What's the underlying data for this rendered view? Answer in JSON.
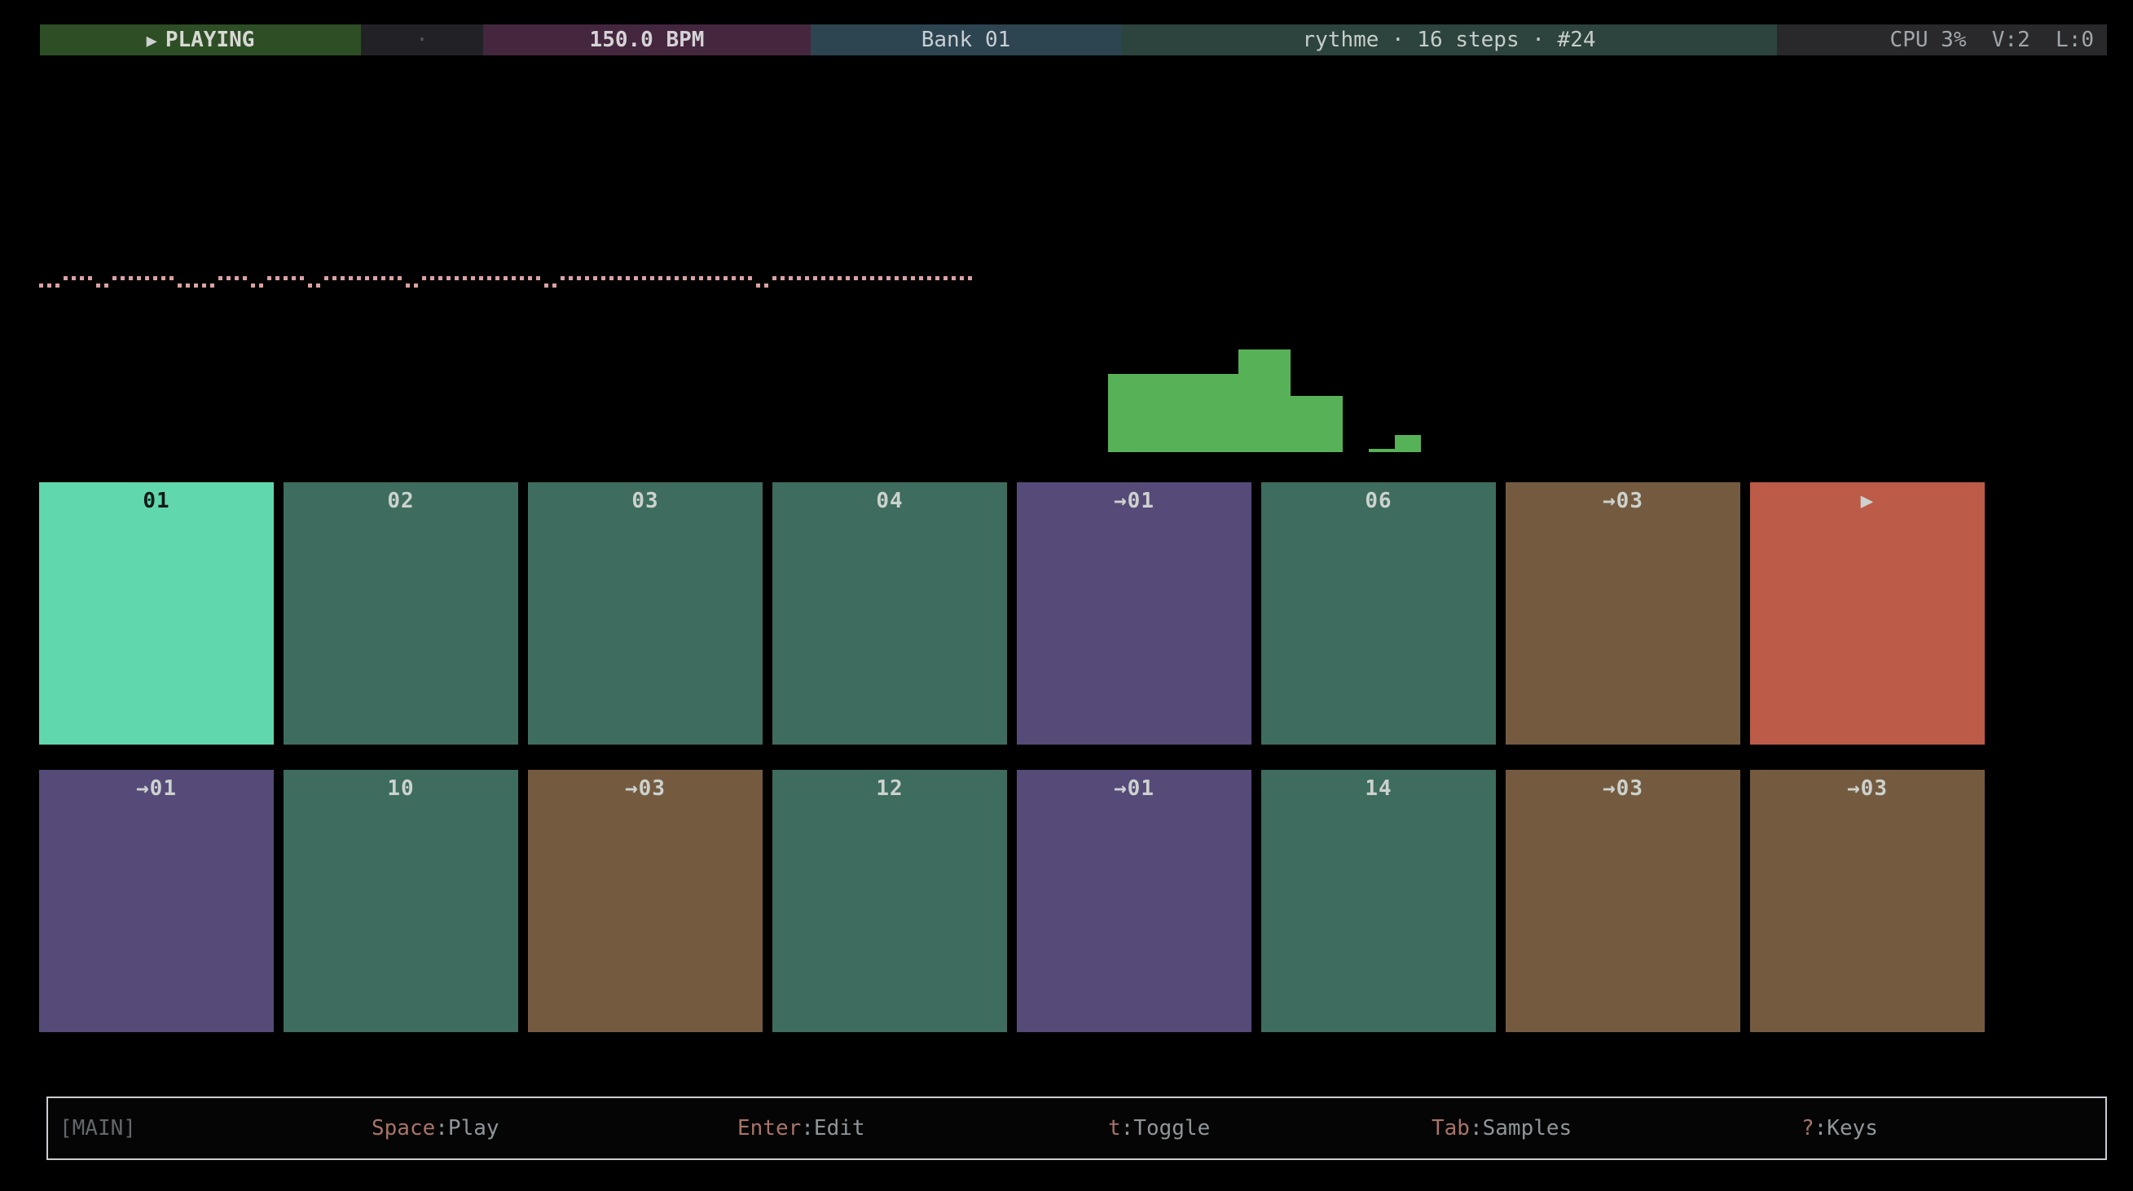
{
  "colors": {
    "background": "#000000",
    "transport_bg": "#2e4e26",
    "metronome_bg": "#212126",
    "bpm_bg": "#44273f",
    "bank_bg": "#2d4451",
    "pattern_bg": "#2d433d",
    "stats_bg": "#29292c",
    "waveform_dot": "#dba1a1",
    "meter_bar": "#57b257",
    "footer_border": "#c9ced2",
    "footer_key": "#a8736a",
    "footer_action": "#8f969a",
    "pad_label_light": "#ccd2cd",
    "pad_label_dark": "#121a17",
    "pad_variants": {
      "active": "#61d7ae",
      "green": "#3e6c5e",
      "purple": "#564a78",
      "brown": "#745b40",
      "red": "#bb5b48"
    }
  },
  "top_bar": {
    "play_icon": "▶",
    "transport_label": "PLAYING",
    "metronome_dot": "·",
    "bpm": "150.0 BPM",
    "bank": "Bank 01",
    "pattern_info": "rythme · 16 steps · #24",
    "stats": "CPU 3%  V:2  L:0"
  },
  "waveform": {
    "runs": [
      [
        0,
        3
      ],
      [
        1,
        4
      ],
      [
        0,
        2
      ],
      [
        1,
        8
      ],
      [
        0,
        5
      ],
      [
        1,
        4
      ],
      [
        0,
        2
      ],
      [
        1,
        5
      ],
      [
        0,
        2
      ],
      [
        1,
        10
      ],
      [
        0,
        2
      ],
      [
        1,
        15
      ],
      [
        0,
        2
      ],
      [
        1,
        24
      ],
      [
        0,
        2
      ],
      [
        1,
        25
      ]
    ]
  },
  "level_meter": {
    "heights": [
      96,
      96,
      96,
      96,
      96,
      126,
      126,
      69,
      69,
      0,
      4,
      21
    ]
  },
  "pads": {
    "rows": [
      [
        {
          "label": "01",
          "variant": "active"
        },
        {
          "label": "02",
          "variant": "green"
        },
        {
          "label": "03",
          "variant": "green"
        },
        {
          "label": "04",
          "variant": "green"
        },
        {
          "label": "→01",
          "variant": "purple"
        },
        {
          "label": "06",
          "variant": "green"
        },
        {
          "label": "→03",
          "variant": "brown"
        },
        {
          "label": "▶",
          "variant": "red"
        }
      ],
      [
        {
          "label": "→01",
          "variant": "purple"
        },
        {
          "label": "10",
          "variant": "green"
        },
        {
          "label": "→03",
          "variant": "brown"
        },
        {
          "label": "12",
          "variant": "green"
        },
        {
          "label": "→01",
          "variant": "purple"
        },
        {
          "label": "14",
          "variant": "green"
        },
        {
          "label": "→03",
          "variant": "brown"
        },
        {
          "label": "→03",
          "variant": "brown"
        }
      ]
    ]
  },
  "footer": {
    "mode": "[MAIN]",
    "hints": [
      {
        "key": "Space",
        "action": "Play"
      },
      {
        "key": "Enter",
        "action": "Edit"
      },
      {
        "key": "t",
        "action": "Toggle"
      },
      {
        "key": "Tab",
        "action": "Samples"
      },
      {
        "key": "?",
        "action": "Keys"
      }
    ]
  }
}
